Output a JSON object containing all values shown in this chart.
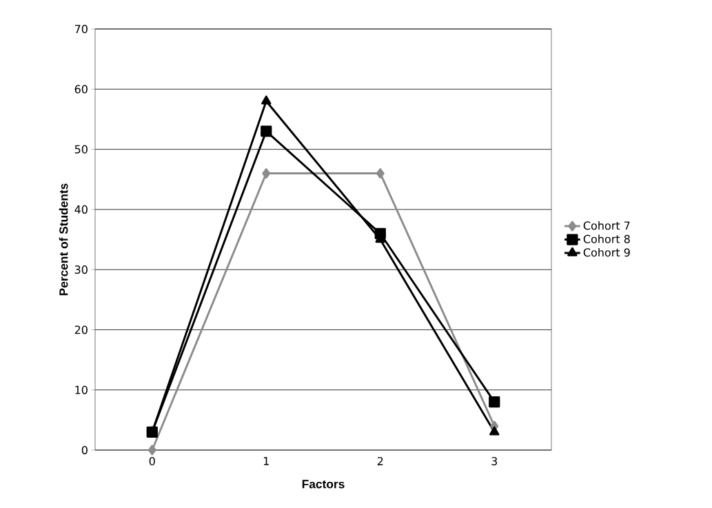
{
  "chart_data": {
    "type": "line",
    "xlabel": "Factors",
    "ylabel": "Percent of Students",
    "categories": [
      "0",
      "1",
      "2",
      "3"
    ],
    "series": [
      {
        "name": "Cohort 7",
        "color": "#8c8c8c",
        "marker": "diamond",
        "values": [
          0,
          46,
          46,
          4
        ]
      },
      {
        "name": "Cohort 8",
        "color": "#000000",
        "marker": "square",
        "values": [
          3,
          53,
          36,
          8
        ]
      },
      {
        "name": "Cohort 9",
        "color": "#000000",
        "marker": "triangle",
        "values": [
          3,
          58,
          35,
          3
        ]
      }
    ],
    "ylim": [
      0,
      70
    ],
    "yticks": [
      0,
      10,
      20,
      30,
      40,
      50,
      60,
      70
    ],
    "grid": "y",
    "legend": "right"
  }
}
